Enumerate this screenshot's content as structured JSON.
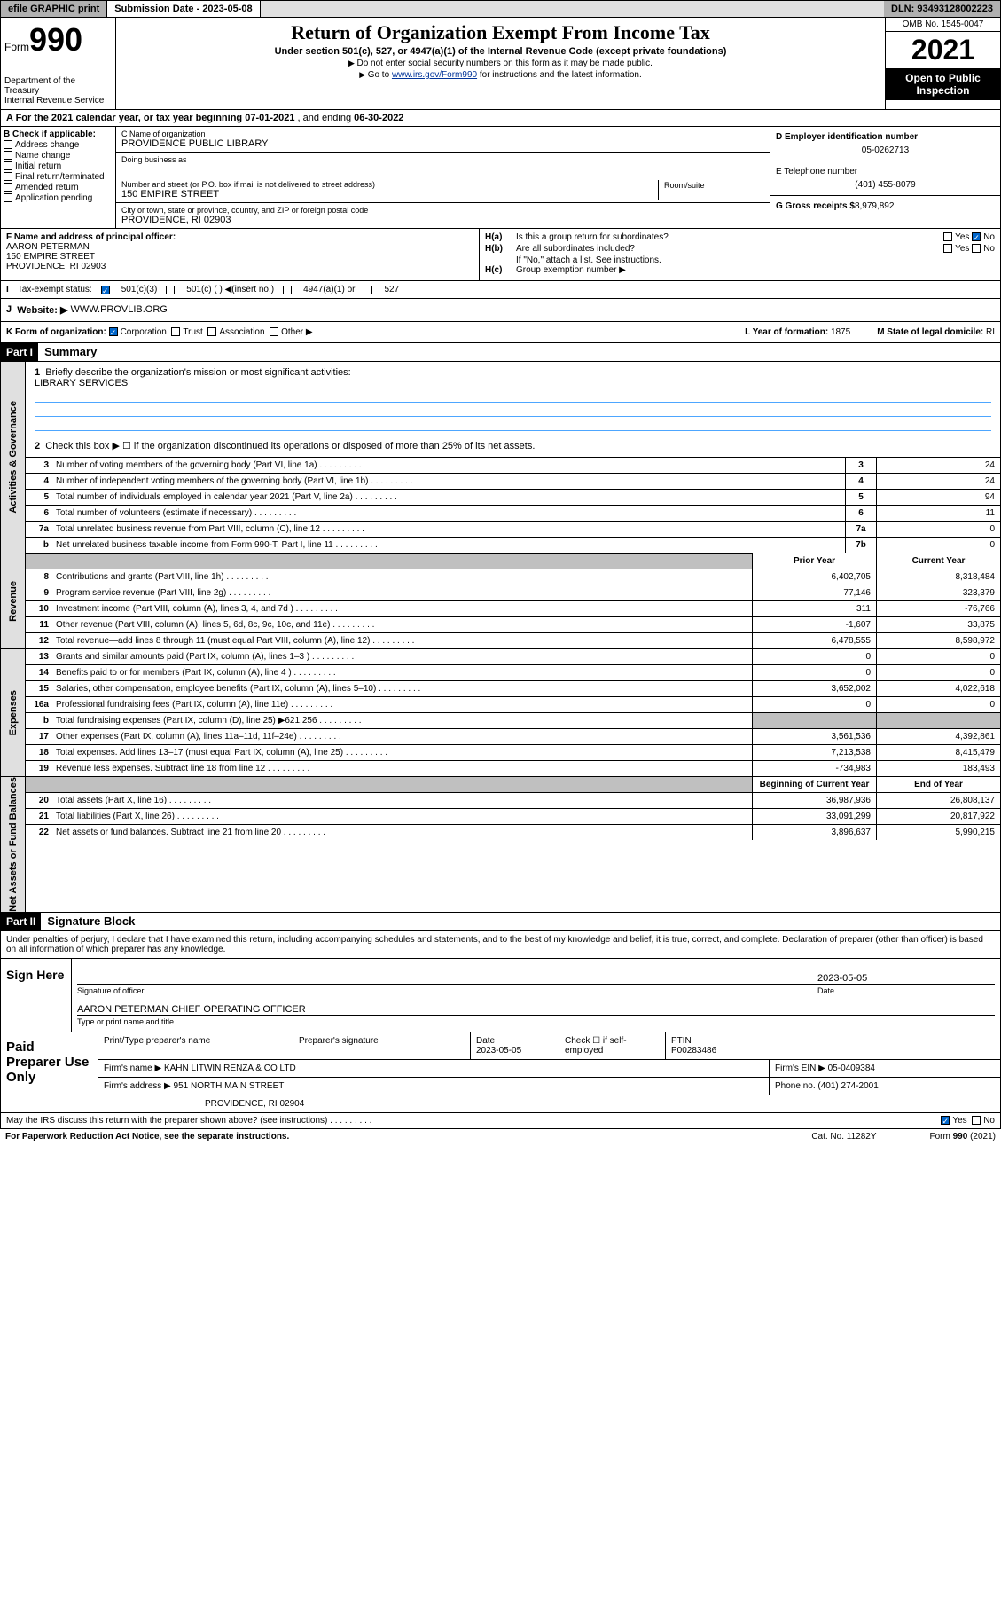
{
  "topbar": {
    "efile": "efile GRAPHIC print",
    "submission": "Submission Date - 2023-05-08",
    "dln": "DLN: 93493128002223"
  },
  "header": {
    "form_word": "Form",
    "form_num": "990",
    "dept": "Department of the Treasury",
    "irs": "Internal Revenue Service",
    "title": "Return of Organization Exempt From Income Tax",
    "sub": "Under section 501(c), 527, or 4947(a)(1) of the Internal Revenue Code (except private foundations)",
    "note1": "Do not enter social security numbers on this form as it may be made public.",
    "note2_pre": "Go to ",
    "note2_link": "www.irs.gov/Form990",
    "note2_post": " for instructions and the latest information.",
    "omb": "OMB No. 1545-0047",
    "year": "2021",
    "open": "Open to Public Inspection"
  },
  "rowA": {
    "prefix": "A For the 2021 calendar year, or tax year beginning ",
    "begin": "07-01-2021",
    "mid": " , and ending ",
    "end": "06-30-2022"
  },
  "colB": {
    "label": "B Check if applicable:",
    "opts": [
      "Address change",
      "Name change",
      "Initial return",
      "Final return/terminated",
      "Amended return",
      "Application pending"
    ]
  },
  "colC": {
    "name_label": "C Name of organization",
    "name": "PROVIDENCE PUBLIC LIBRARY",
    "dba_label": "Doing business as",
    "dba": "",
    "street_label": "Number and street (or P.O. box if mail is not delivered to street address)",
    "room_label": "Room/suite",
    "street": "150 EMPIRE STREET",
    "city_label": "City or town, state or province, country, and ZIP or foreign postal code",
    "city": "PROVIDENCE, RI  02903"
  },
  "colDE": {
    "d_label": "D Employer identification number",
    "d_val": "05-0262713",
    "e_label": "E Telephone number",
    "e_val": "(401) 455-8079",
    "g_label": "G Gross receipts $",
    "g_val": "8,979,892"
  },
  "rowF": {
    "label": "F Name and address of principal officer:",
    "name": "AARON PETERMAN",
    "street": "150 EMPIRE STREET",
    "city": "PROVIDENCE, RI  02903"
  },
  "rowH": {
    "a_q": "Is this a group return for subordinates?",
    "a_ans": "No",
    "b_q": "Are all subordinates included?",
    "b_note": "If \"No,\" attach a list. See instructions.",
    "c_label": "Group exemption number ▶"
  },
  "rowI": {
    "label": "Tax-exempt status:",
    "opt1": "501(c)(3)",
    "opt2": "501(c) (   ) ◀(insert no.)",
    "opt3": "4947(a)(1) or",
    "opt4": "527"
  },
  "rowJ": {
    "label": "Website: ▶",
    "val": "WWW.PROVLIB.ORG"
  },
  "rowK": {
    "label": "K Form of organization:",
    "opts": [
      "Corporation",
      "Trust",
      "Association",
      "Other ▶"
    ],
    "l_label": "L Year of formation:",
    "l_val": "1875",
    "m_label": "M State of legal domicile:",
    "m_val": "RI"
  },
  "part1": {
    "num": "Part I",
    "title": "Summary",
    "q1": "Briefly describe the organization's mission or most significant activities:",
    "mission": "LIBRARY SERVICES",
    "q2": "Check this box ▶ ☐  if the organization discontinued its operations or disposed of more than 25% of its net assets.",
    "sideA": "Activities & Governance",
    "sideR": "Revenue",
    "sideE": "Expenses",
    "sideN": "Net Assets or Fund Balances",
    "lines_gov": [
      {
        "n": "3",
        "d": "Number of voting members of the governing body (Part VI, line 1a)",
        "box": "3",
        "v": "24"
      },
      {
        "n": "4",
        "d": "Number of independent voting members of the governing body (Part VI, line 1b)",
        "box": "4",
        "v": "24"
      },
      {
        "n": "5",
        "d": "Total number of individuals employed in calendar year 2021 (Part V, line 2a)",
        "box": "5",
        "v": "94"
      },
      {
        "n": "6",
        "d": "Total number of volunteers (estimate if necessary)",
        "box": "6",
        "v": "11"
      },
      {
        "n": "7a",
        "d": "Total unrelated business revenue from Part VIII, column (C), line 12",
        "box": "7a",
        "v": "0"
      },
      {
        "n": "b",
        "d": "Net unrelated business taxable income from Form 990-T, Part I, line 11",
        "box": "7b",
        "v": "0"
      }
    ],
    "col_prior": "Prior Year",
    "col_current": "Current Year",
    "lines_rev": [
      {
        "n": "8",
        "d": "Contributions and grants (Part VIII, line 1h)",
        "p": "6,402,705",
        "c": "8,318,484"
      },
      {
        "n": "9",
        "d": "Program service revenue (Part VIII, line 2g)",
        "p": "77,146",
        "c": "323,379"
      },
      {
        "n": "10",
        "d": "Investment income (Part VIII, column (A), lines 3, 4, and 7d )",
        "p": "311",
        "c": "-76,766"
      },
      {
        "n": "11",
        "d": "Other revenue (Part VIII, column (A), lines 5, 6d, 8c, 9c, 10c, and 11e)",
        "p": "-1,607",
        "c": "33,875"
      },
      {
        "n": "12",
        "d": "Total revenue—add lines 8 through 11 (must equal Part VIII, column (A), line 12)",
        "p": "6,478,555",
        "c": "8,598,972"
      }
    ],
    "lines_exp": [
      {
        "n": "13",
        "d": "Grants and similar amounts paid (Part IX, column (A), lines 1–3 )",
        "p": "0",
        "c": "0"
      },
      {
        "n": "14",
        "d": "Benefits paid to or for members (Part IX, column (A), line 4 )",
        "p": "0",
        "c": "0"
      },
      {
        "n": "15",
        "d": "Salaries, other compensation, employee benefits (Part IX, column (A), lines 5–10)",
        "p": "3,652,002",
        "c": "4,022,618"
      },
      {
        "n": "16a",
        "d": "Professional fundraising fees (Part IX, column (A), line 11e)",
        "p": "0",
        "c": "0"
      },
      {
        "n": "b",
        "d": "Total fundraising expenses (Part IX, column (D), line 25) ▶621,256",
        "p": "",
        "c": "",
        "gray": true
      },
      {
        "n": "17",
        "d": "Other expenses (Part IX, column (A), lines 11a–11d, 11f–24e)",
        "p": "3,561,536",
        "c": "4,392,861"
      },
      {
        "n": "18",
        "d": "Total expenses. Add lines 13–17 (must equal Part IX, column (A), line 25)",
        "p": "7,213,538",
        "c": "8,415,479"
      },
      {
        "n": "19",
        "d": "Revenue less expenses. Subtract line 18 from line 12",
        "p": "-734,983",
        "c": "183,493"
      }
    ],
    "col_begin": "Beginning of Current Year",
    "col_end": "End of Year",
    "lines_net": [
      {
        "n": "20",
        "d": "Total assets (Part X, line 16)",
        "p": "36,987,936",
        "c": "26,808,137"
      },
      {
        "n": "21",
        "d": "Total liabilities (Part X, line 26)",
        "p": "33,091,299",
        "c": "20,817,922"
      },
      {
        "n": "22",
        "d": "Net assets or fund balances. Subtract line 21 from line 20",
        "p": "3,896,637",
        "c": "5,990,215"
      }
    ]
  },
  "part2": {
    "num": "Part II",
    "title": "Signature Block",
    "declare": "Under penalties of perjury, I declare that I have examined this return, including accompanying schedules and statements, and to the best of my knowledge and belief, it is true, correct, and complete. Declaration of preparer (other than officer) is based on all information of which preparer has any knowledge."
  },
  "sign": {
    "left": "Sign Here",
    "sig_cap": "Signature of officer",
    "date_cap": "Date",
    "date": "2023-05-05",
    "name": "AARON PETERMAN CHIEF OPERATING OFFICER",
    "name_cap": "Type or print name and title"
  },
  "preparer": {
    "left": "Paid Preparer Use Only",
    "h1": "Print/Type preparer's name",
    "h2": "Preparer's signature",
    "h3": "Date",
    "date": "2023-05-05",
    "h4": "Check ☐ if self-employed",
    "h5": "PTIN",
    "ptin": "P00283486",
    "firm_label": "Firm's name    ▶",
    "firm": "KAHN LITWIN RENZA & CO LTD",
    "ein_label": "Firm's EIN ▶",
    "ein": "05-0409384",
    "addr_label": "Firm's address ▶",
    "addr1": "951 NORTH MAIN STREET",
    "addr2": "PROVIDENCE, RI  02904",
    "phone_label": "Phone no.",
    "phone": "(401) 274-2001"
  },
  "footer": {
    "discuss": "May the IRS discuss this return with the preparer shown above? (see instructions)",
    "yes": "Yes",
    "no": "No",
    "paperwork": "For Paperwork Reduction Act Notice, see the separate instructions.",
    "cat": "Cat. No. 11282Y",
    "form": "Form 990 (2021)"
  }
}
